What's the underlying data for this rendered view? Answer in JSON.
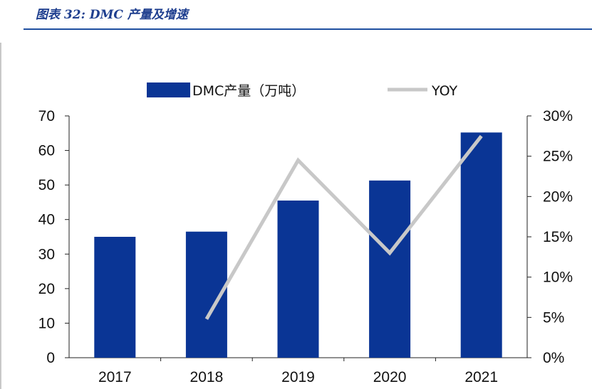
{
  "figure": {
    "title": "图表 32:  DMC 产量及增速"
  },
  "colors": {
    "bar": "#0a3595",
    "line": "#c8c8c8",
    "title": "#1f3f8f",
    "rule": "#1f4fa0",
    "axis": "#222222"
  },
  "chart_data": {
    "type": "bar",
    "categories": [
      "2017",
      "2018",
      "2019",
      "2020",
      "2021"
    ],
    "series": [
      {
        "name": "DMC产量（万吨）",
        "type": "bar",
        "axis": "left",
        "values": [
          35,
          36.5,
          45.5,
          51.3,
          65.2
        ]
      },
      {
        "name": "YOY",
        "type": "line",
        "axis": "right",
        "values": [
          null,
          4.8,
          24.5,
          13.0,
          27.5
        ]
      }
    ],
    "y_left": {
      "lim": [
        0,
        70
      ],
      "ticks": [
        "0",
        "10",
        "20",
        "30",
        "40",
        "50",
        "60",
        "70"
      ]
    },
    "y_right": {
      "lim": [
        0,
        30
      ],
      "unit": "%",
      "ticks": [
        "0%",
        "5%",
        "10%",
        "15%",
        "20%",
        "25%",
        "30%"
      ]
    },
    "grid": false,
    "legend_position": "top"
  }
}
